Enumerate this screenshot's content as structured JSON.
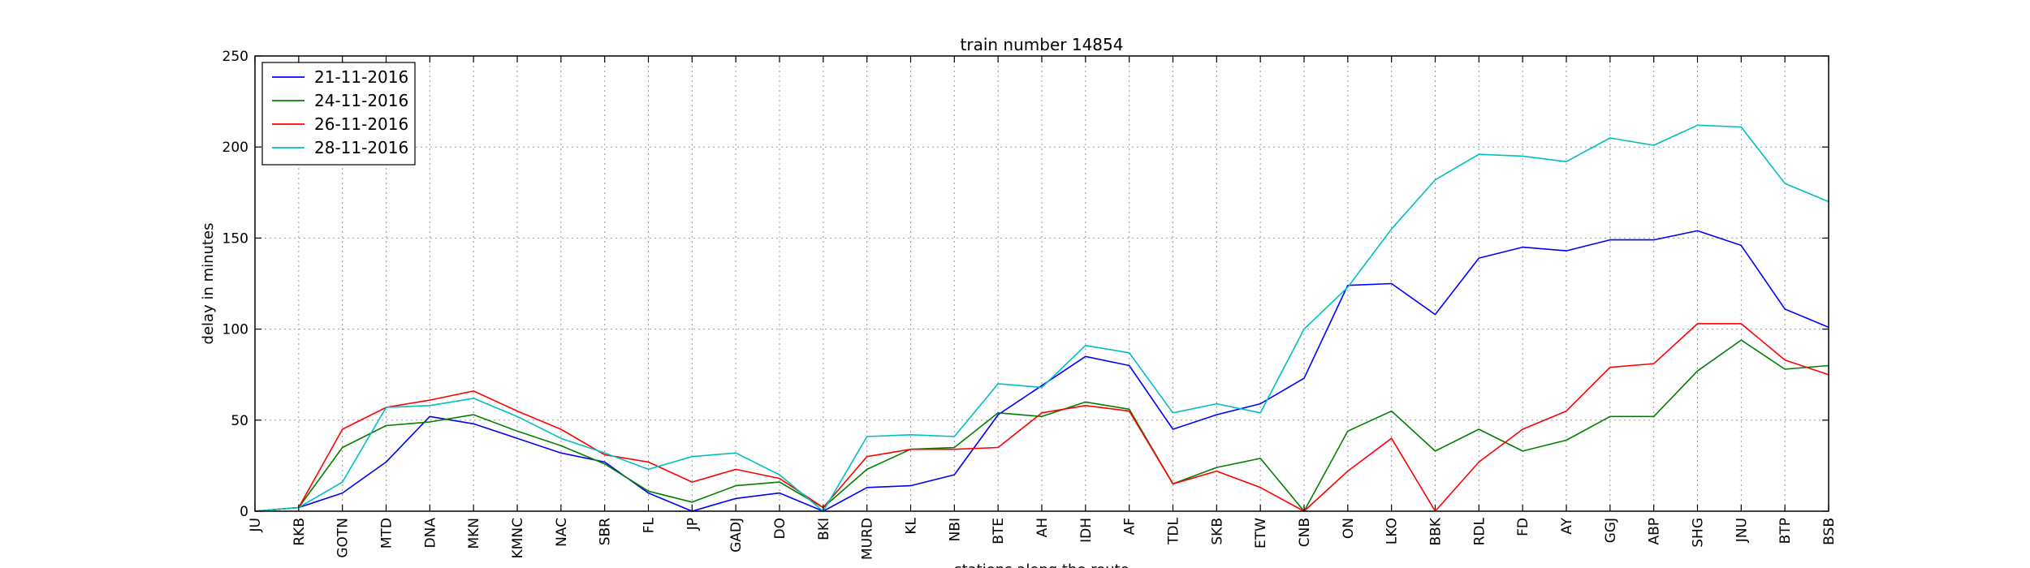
{
  "chart_data": {
    "type": "line",
    "title": "train number 14854",
    "xlabel": "stations along the route",
    "ylabel": "delay in minutes",
    "ylim": [
      0,
      250
    ],
    "yticks": [
      0,
      50,
      100,
      150,
      200,
      250
    ],
    "grid": true,
    "legend_position": "top-left",
    "categories": [
      "JU",
      "RKB",
      "GOTN",
      "MTD",
      "DNA",
      "MKN",
      "KMNC",
      "NAC",
      "SBR",
      "FL",
      "JP",
      "GADJ",
      "DO",
      "BKI",
      "MURD",
      "KL",
      "NBI",
      "BTE",
      "AH",
      "IDH",
      "AF",
      "TDL",
      "SKB",
      "ETW",
      "CNB",
      "ON",
      "LKO",
      "BBK",
      "RDL",
      "FD",
      "AY",
      "GGJ",
      "ABP",
      "SHG",
      "JNU",
      "BTP",
      "BSB"
    ],
    "series": [
      {
        "name": "21-11-2016",
        "color": "#0000ff",
        "values": [
          0,
          2,
          10,
          27,
          52,
          48,
          40,
          32,
          27,
          10,
          0,
          7,
          10,
          0,
          13,
          14,
          20,
          53,
          69,
          85,
          80,
          45,
          53,
          59,
          73,
          124,
          125,
          108,
          139,
          145,
          143,
          149,
          149,
          154,
          146,
          111,
          101
        ]
      },
      {
        "name": "24-11-2016",
        "color": "#008000",
        "values": [
          0,
          2,
          35,
          47,
          49,
          53,
          44,
          36,
          26,
          11,
          5,
          14,
          16,
          2,
          23,
          34,
          35,
          54,
          52,
          60,
          56,
          15,
          24,
          29,
          0,
          44,
          55,
          33,
          45,
          33,
          39,
          52,
          52,
          77,
          94,
          78,
          80
        ]
      },
      {
        "name": "26-11-2016",
        "color": "#ff0000",
        "values": [
          0,
          2,
          45,
          57,
          61,
          66,
          55,
          45,
          31,
          27,
          16,
          23,
          18,
          2,
          30,
          34,
          34,
          35,
          54,
          58,
          55,
          15,
          22,
          13,
          0,
          22,
          40,
          0,
          27,
          45,
          55,
          79,
          81,
          103,
          103,
          83,
          75
        ]
      },
      {
        "name": "28-11-2016",
        "color": "#00bfbf",
        "values": [
          0,
          2,
          16,
          57,
          58,
          62,
          52,
          40,
          32,
          23,
          30,
          32,
          20,
          0,
          41,
          42,
          41,
          70,
          68,
          91,
          87,
          54,
          59,
          54,
          100,
          123,
          155,
          182,
          196,
          195,
          192,
          205,
          201,
          212,
          211,
          180,
          170
        ]
      }
    ]
  }
}
